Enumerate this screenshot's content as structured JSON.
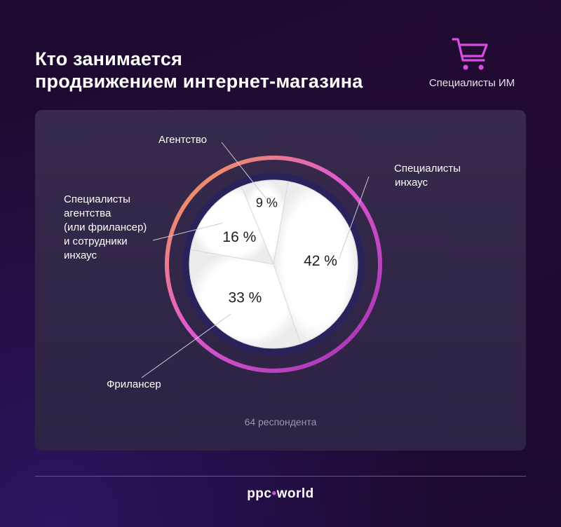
{
  "header": {
    "title_line1": "Кто занимается",
    "title_line2": "продвижением интернет-магазина"
  },
  "badge": {
    "icon": "cart-icon",
    "label": "Специалисты ИМ",
    "color": "#d84ee0"
  },
  "chart_data": {
    "type": "pie",
    "slices": [
      {
        "label": "Специалисты инхаус",
        "value": 42,
        "value_label": "42 %"
      },
      {
        "label": "Фрилансер",
        "value": 33,
        "value_label": "33 %"
      },
      {
        "label": "Специалисты агентства (или фрилансер) и сотрудники инхаус",
        "value": 16,
        "value_label": "16 %"
      },
      {
        "label": "Агентство",
        "value": 9,
        "value_label": "9 %"
      }
    ],
    "category_labels": {
      "agency": "Агентство",
      "inhouse": [
        "Специалисты",
        "инхаус"
      ],
      "mixed": [
        "Специалисты",
        "агентства",
        "(или фрилансер)",
        "и сотрудники",
        "инхаус"
      ],
      "freelancer": "Фрилансер"
    },
    "note": "64 респондента",
    "colors": {
      "ring_start": "#f5a33c",
      "ring_mid": "#e05ad0",
      "ring_end": "#9e2fb0",
      "pie_fill": "#ffffff",
      "disc": "#28235a"
    }
  },
  "footer": {
    "logo_part1": "ppc",
    "logo_part2": "world"
  }
}
